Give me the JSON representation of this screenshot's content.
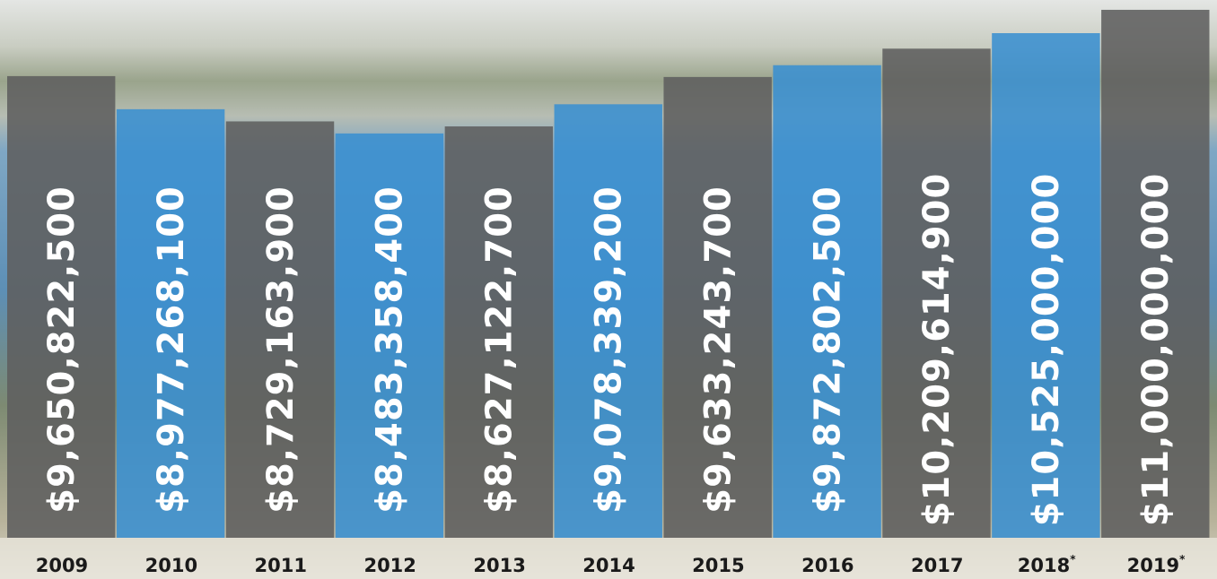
{
  "chart_data": {
    "type": "bar",
    "categories": [
      "2009",
      "2010",
      "2011",
      "2012",
      "2013",
      "2014",
      "2015",
      "2016",
      "2017",
      "2018*",
      "2019*"
    ],
    "values": [
      9650822500,
      8977268100,
      8729163900,
      8483358400,
      8627122700,
      9078339200,
      9633243700,
      9872802500,
      10209614900,
      10525000000,
      11000000000
    ],
    "value_labels": [
      "$9,650,822,500",
      "$8,977,268,100",
      "$8,729,163,900",
      "$8,483,358,400",
      "$8,627,122,700",
      "$9,078,339,200",
      "$9,633,243,700",
      "$9,872,802,500",
      "$10,209,614,900",
      "$10,525,000,000",
      "$11,000,000,000"
    ],
    "colors": [
      "#5f5f5f",
      "#3a8fd0",
      "#5f5f5f",
      "#3a8fd0",
      "#5f5f5f",
      "#3a8fd0",
      "#5f5f5f",
      "#3a8fd0",
      "#5f5f5f",
      "#3a8fd0",
      "#5f5f5f"
    ],
    "ylim": [
      0,
      11200000000
    ]
  }
}
